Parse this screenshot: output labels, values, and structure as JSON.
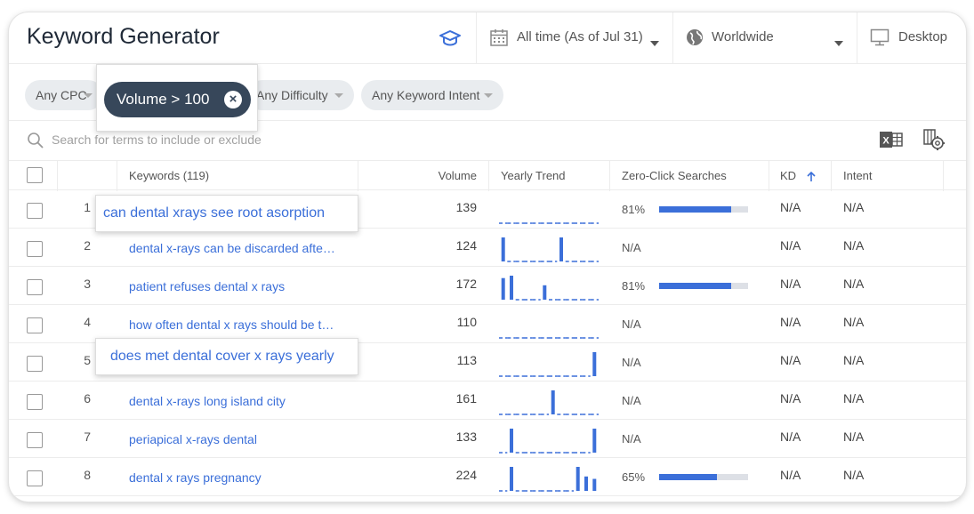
{
  "header": {
    "title": "Keyword Generator",
    "date_filter": "All time (As of Jul 31)",
    "location": "Worldwide",
    "device": "Desktop"
  },
  "filters": {
    "cpc": "Any CPC",
    "volume": "Volume > 100",
    "difficulty": "Any Difficulty",
    "intent": "Any Keyword Intent"
  },
  "search": {
    "placeholder": "Search for terms to include or exclude"
  },
  "table": {
    "headers": {
      "keywords": "Keywords (119)",
      "volume": "Volume",
      "trend": "Yearly Trend",
      "zero_click": "Zero-Click Searches",
      "kd": "KD",
      "intent": "Intent"
    },
    "rows": [
      {
        "n": "1",
        "keyword": "can dental xrays see root asorption",
        "volume": "139",
        "trend": [
          0,
          0,
          0,
          0,
          0,
          0,
          0,
          0,
          0,
          0,
          0,
          0
        ],
        "zero_click": "81%",
        "zero_click_value": 0.81,
        "kd": "N/A",
        "intent": "N/A"
      },
      {
        "n": "2",
        "keyword": "dental x-rays can be discarded afte…",
        "volume": "124",
        "trend": [
          1,
          0,
          0,
          0,
          0,
          0,
          0,
          1,
          0,
          0,
          0,
          0
        ],
        "zero_click": "N/A",
        "zero_click_value": null,
        "kd": "N/A",
        "intent": "N/A"
      },
      {
        "n": "3",
        "keyword": "patient refuses dental x rays",
        "volume": "172",
        "trend": [
          0.9,
          1,
          0,
          0,
          0,
          0.6,
          0,
          0,
          0,
          0,
          0,
          0
        ],
        "zero_click": "81%",
        "zero_click_value": 0.81,
        "kd": "N/A",
        "intent": "N/A"
      },
      {
        "n": "4",
        "keyword": "how often dental x rays should be t…",
        "volume": "110",
        "trend": [
          0,
          0,
          0,
          0,
          0,
          0,
          0,
          0,
          0,
          0,
          0,
          0
        ],
        "zero_click": "N/A",
        "zero_click_value": null,
        "kd": "N/A",
        "intent": "N/A"
      },
      {
        "n": "5",
        "keyword": "does met dental cover x rays yearly",
        "volume": "113",
        "trend": [
          0,
          0,
          0,
          0,
          0,
          0,
          0,
          0,
          0,
          0,
          0,
          1
        ],
        "zero_click": "N/A",
        "zero_click_value": null,
        "kd": "N/A",
        "intent": "N/A"
      },
      {
        "n": "6",
        "keyword": "dental x-rays long island city",
        "volume": "161",
        "trend": [
          0,
          0,
          0,
          0,
          0,
          0,
          1,
          0,
          0,
          0,
          0,
          0
        ],
        "zero_click": "N/A",
        "zero_click_value": null,
        "kd": "N/A",
        "intent": "N/A"
      },
      {
        "n": "7",
        "keyword": "periapical x-rays dental",
        "volume": "133",
        "trend": [
          0,
          1,
          0,
          0,
          0,
          0,
          0,
          0,
          0,
          0,
          0,
          1
        ],
        "zero_click": "N/A",
        "zero_click_value": null,
        "kd": "N/A",
        "intent": "N/A"
      },
      {
        "n": "8",
        "keyword": "dental x rays pregnancy",
        "volume": "224",
        "trend": [
          0,
          1,
          0,
          0,
          0,
          0,
          0,
          0,
          0,
          1,
          0.6,
          0.5
        ],
        "zero_click": "65%",
        "zero_click_value": 0.65,
        "kd": "N/A",
        "intent": "N/A"
      }
    ]
  },
  "tooltips": {
    "row1": "can dental xrays see root asorption",
    "row5": "does met dental cover x rays yearly"
  },
  "colors": {
    "accent": "#3b6fd9",
    "pill": "#37475a",
    "chip": "#e9ecef"
  }
}
